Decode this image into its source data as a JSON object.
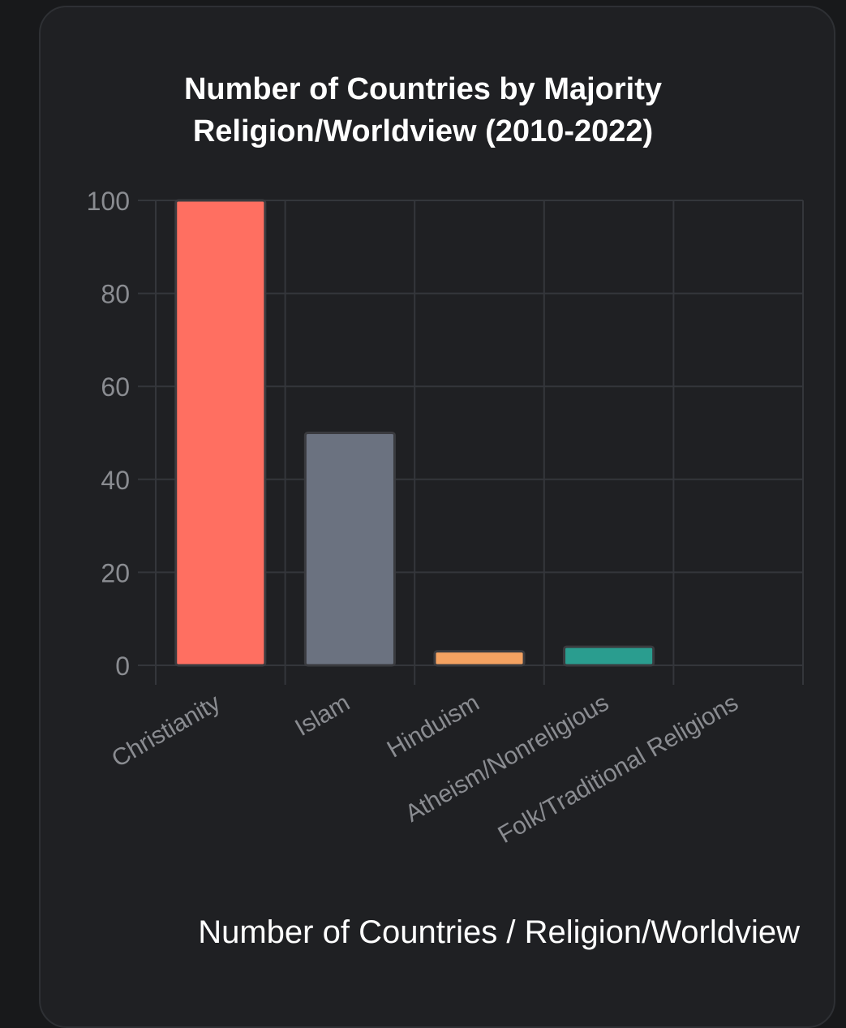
{
  "chart_data": {
    "type": "bar",
    "title_line1": "Number of Countries by Majority",
    "title_line2": "Religion/Worldview (2010-2022)",
    "categories": [
      "Christianity",
      "Islam",
      "Hinduism",
      "Atheism/Nonreligious",
      "Folk/Traditional Religions"
    ],
    "values": [
      100,
      50,
      3,
      4,
      0
    ],
    "colors": [
      "#ff6f61",
      "#6b7280",
      "#f4a261",
      "#2a9d8f",
      "#b0b0b0"
    ],
    "yticks": [
      0,
      20,
      40,
      60,
      80,
      100
    ],
    "ylim": [
      0,
      100
    ],
    "grid": true,
    "xlabel": "Number of Countries / Religion/Worldview"
  }
}
